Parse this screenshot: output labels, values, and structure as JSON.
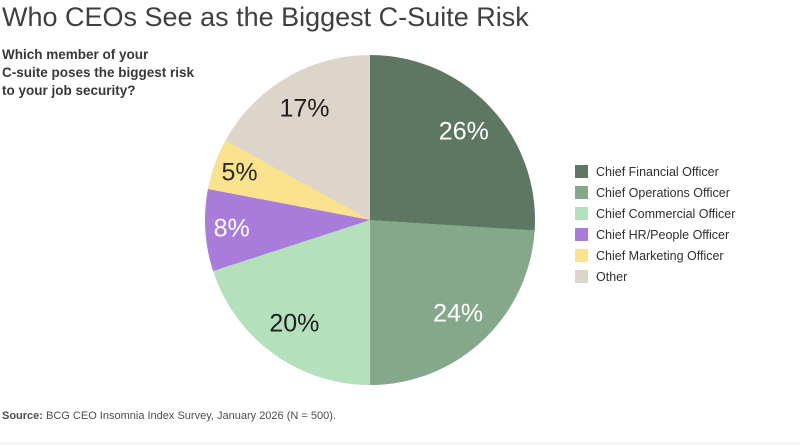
{
  "header": {
    "title": "Who CEOs See as the Biggest C-Suite Risk"
  },
  "question": {
    "text": "Which member of your\nC-suite poses the biggest risk\nto your job security?"
  },
  "chart_data": {
    "type": "pie",
    "title": "Who CEOs See as the Biggest C-Suite Risk",
    "subtitle": "Which member of your C-suite poses the biggest risk to your job security?",
    "start_angle_deg": 0,
    "direction": "clockwise",
    "legend_position": "right",
    "categories": [
      "Chief Financial Officer",
      "Chief Operations Officer",
      "Chief Commercial Officer",
      "Chief HR/People Officer",
      "Chief Marketing Officer",
      "Other"
    ],
    "values": [
      26,
      24,
      20,
      8,
      5,
      17
    ],
    "slices": [
      {
        "label": "Chief Financial Officer",
        "value": 26,
        "display": "26%",
        "color": "#5d7763",
        "text_color": "#ffffff"
      },
      {
        "label": "Chief Operations Officer",
        "value": 24,
        "display": "24%",
        "color": "#85a88b",
        "text_color": "#ffffff"
      },
      {
        "label": "Chief Commercial Officer",
        "value": 20,
        "display": "20%",
        "color": "#b4e0bc",
        "text_color": "#1f1f1f"
      },
      {
        "label": "Chief HR/People Officer",
        "value": 8,
        "display": "8%",
        "color": "#a97bdb",
        "text_color": "#ffffff"
      },
      {
        "label": "Chief Marketing Officer",
        "value": 5,
        "display": "5%",
        "color": "#fae28e",
        "text_color": "#2a2a2a"
      },
      {
        "label": "Other",
        "value": 17,
        "display": "17%",
        "color": "#ded5ca",
        "text_color": "#1f1f1f"
      }
    ]
  },
  "source": {
    "label": "Source:",
    "text": " BCG CEO Insomnia Index Survey, January 2026 (N = 500)."
  }
}
